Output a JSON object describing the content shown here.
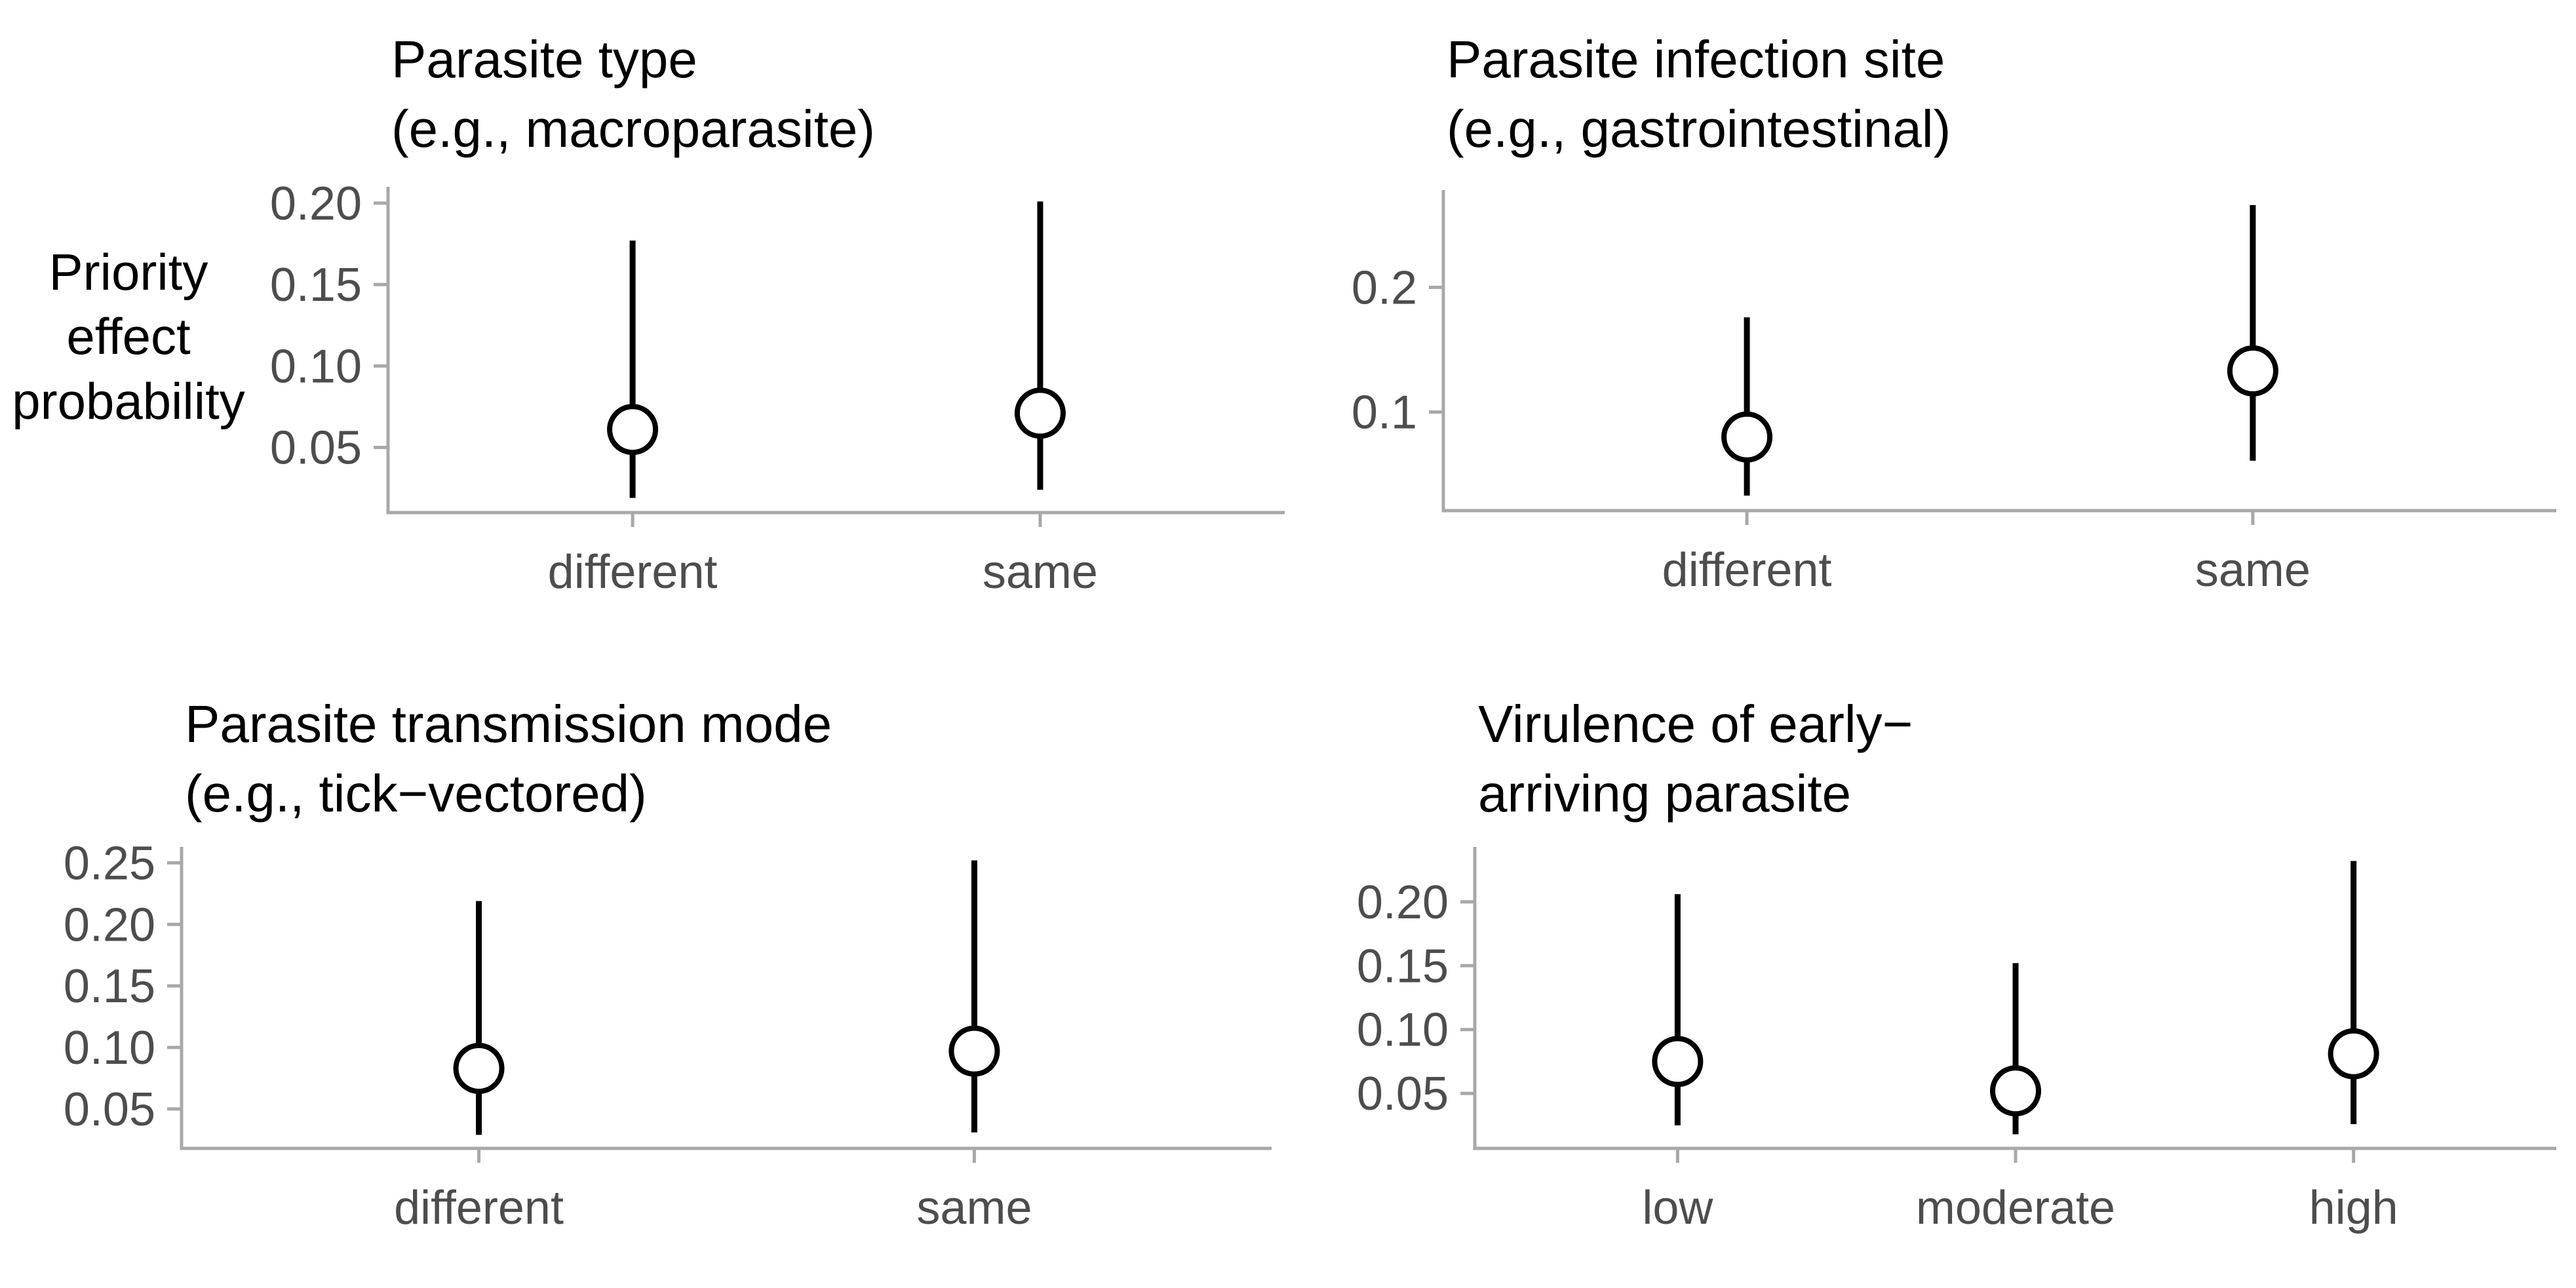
{
  "figure": {
    "background": "#ffffff",
    "y_axis_label": "Priority\neffect\nprobability",
    "colors": {
      "axis_line": "#a8a8a8",
      "tick_text": "#4d4d4d",
      "category_text": "#4d4d4d",
      "title_text": "#000000",
      "interval_line": "#000000",
      "marker_fill": "#ffffff",
      "marker_stroke": "#000000"
    }
  },
  "chart_data": [
    {
      "type": "pointrange",
      "title": "Parasite type\n(e.g., macroparasite)",
      "ylabel": "Priority effect probability",
      "categories": [
        "different",
        "same"
      ],
      "values": [
        {
          "category": "different",
          "estimate": 0.061,
          "lower": 0.019,
          "upper": 0.177
        },
        {
          "category": "same",
          "estimate": 0.071,
          "lower": 0.024,
          "upper": 0.201
        }
      ],
      "yticks": [
        0.05,
        0.1,
        0.15,
        0.2
      ],
      "ytick_labels": [
        "0.05",
        "0.10",
        "0.15",
        "0.20"
      ],
      "ylim": [
        0.01,
        0.21
      ],
      "grid": false,
      "legend": "none"
    },
    {
      "type": "pointrange",
      "title": "Parasite infection site\n(e.g., gastrointestinal)",
      "ylabel": "Priority effect probability",
      "categories": [
        "different",
        "same"
      ],
      "values": [
        {
          "category": "different",
          "estimate": 0.08,
          "lower": 0.033,
          "upper": 0.176
        },
        {
          "category": "same",
          "estimate": 0.133,
          "lower": 0.061,
          "upper": 0.266
        }
      ],
      "yticks": [
        0.1,
        0.2
      ],
      "ytick_labels": [
        "0.1",
        "0.2"
      ],
      "ylim": [
        0.021,
        0.278
      ],
      "grid": false,
      "legend": "none"
    },
    {
      "type": "pointrange",
      "title": "Parasite transmission mode\n(e.g., tick−vectored)",
      "ylabel": "Priority effect probability",
      "categories": [
        "different",
        "same"
      ],
      "values": [
        {
          "category": "different",
          "estimate": 0.083,
          "lower": 0.029,
          "upper": 0.219
        },
        {
          "category": "same",
          "estimate": 0.097,
          "lower": 0.031,
          "upper": 0.252
        }
      ],
      "yticks": [
        0.05,
        0.1,
        0.15,
        0.2,
        0.25
      ],
      "ytick_labels": [
        "0.05",
        "0.10",
        "0.15",
        "0.20",
        "0.25"
      ],
      "ylim": [
        0.018,
        0.263
      ],
      "grid": false,
      "legend": "none"
    },
    {
      "type": "pointrange",
      "title": "Virulence of early−\narriving parasite",
      "ylabel": "Priority effect probability",
      "categories": [
        "low",
        "moderate",
        "high"
      ],
      "values": [
        {
          "category": "low",
          "estimate": 0.075,
          "lower": 0.025,
          "upper": 0.206
        },
        {
          "category": "moderate",
          "estimate": 0.052,
          "lower": 0.018,
          "upper": 0.152
        },
        {
          "category": "high",
          "estimate": 0.081,
          "lower": 0.026,
          "upper": 0.232
        }
      ],
      "yticks": [
        0.05,
        0.1,
        0.15,
        0.2
      ],
      "ytick_labels": [
        "0.05",
        "0.10",
        "0.15",
        "0.20"
      ],
      "ylim": [
        0.007,
        0.243
      ],
      "grid": false,
      "legend": "none"
    }
  ]
}
